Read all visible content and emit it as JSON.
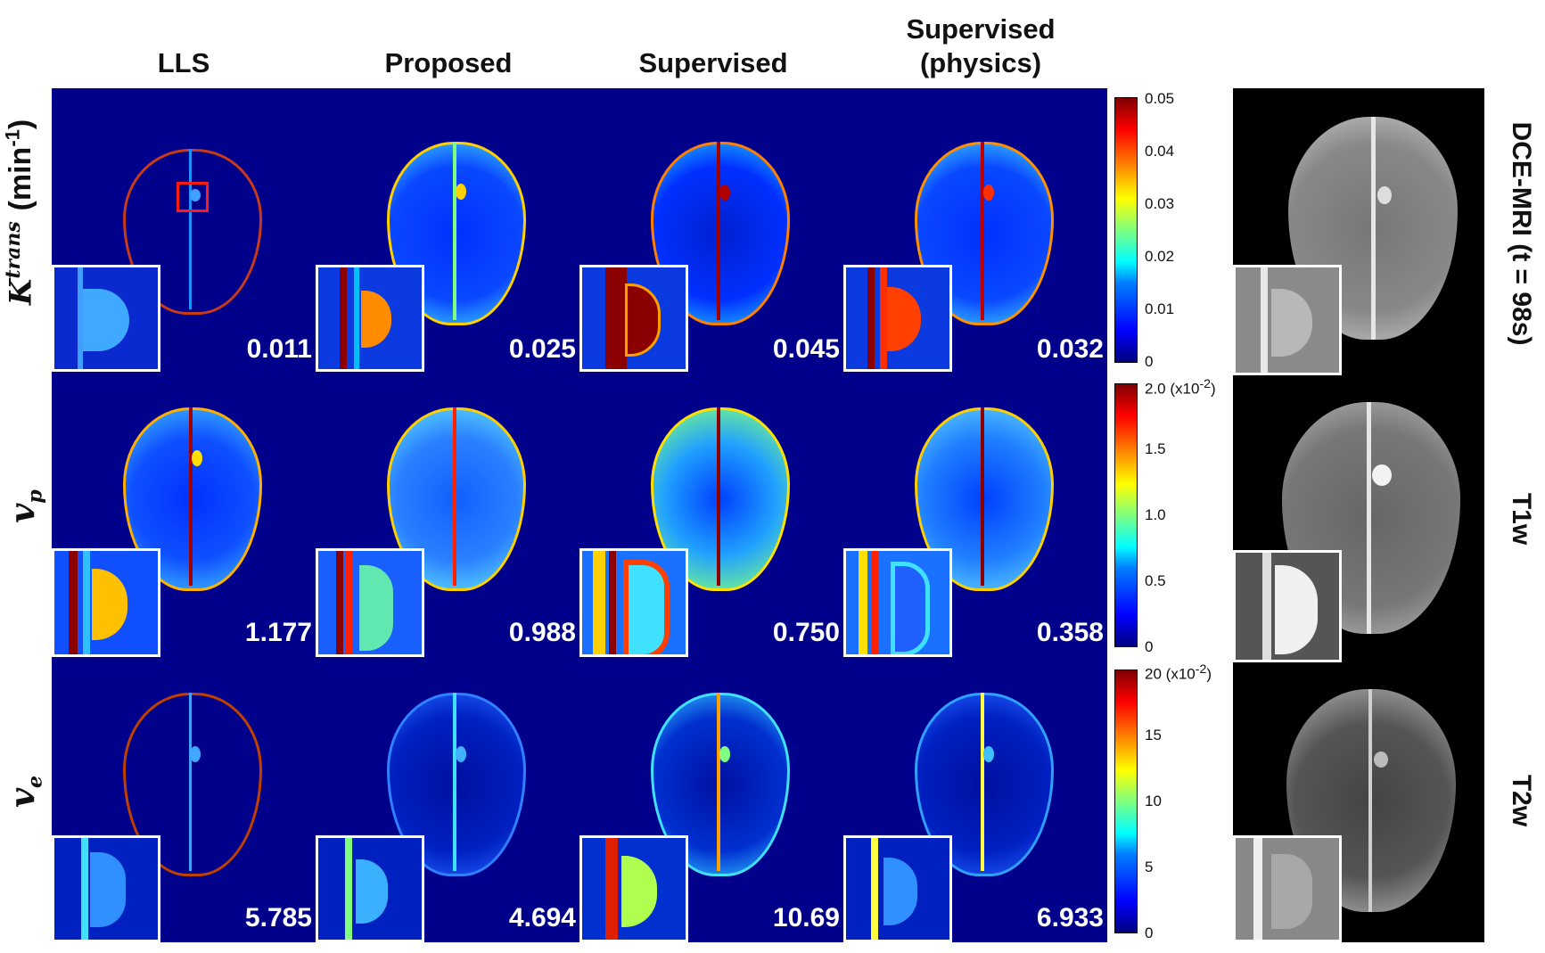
{
  "columns": [
    "LLS",
    "Proposed",
    "Supervised",
    "Supervised\n(physics)"
  ],
  "rows": [
    {
      "symbol": "K",
      "sup": "trans",
      "sub": "",
      "unit": "(min",
      "unit_sup": "-1",
      "unit_end": ")",
      "values": [
        "0.011",
        "0.025",
        "0.045",
        "0.032"
      ]
    },
    {
      "symbol": "v",
      "sup": "",
      "sub": "p",
      "unit": "",
      "unit_sup": "",
      "unit_end": "",
      "values": [
        "1.177",
        "0.988",
        "0.750",
        "0.358"
      ]
    },
    {
      "symbol": "v",
      "sup": "",
      "sub": "e",
      "unit": "",
      "unit_sup": "",
      "unit_end": "",
      "values": [
        "5.785",
        "4.694",
        "10.69",
        "6.933"
      ]
    }
  ],
  "colorbars": [
    {
      "ticks": [
        "0.05",
        "0.04",
        "0.03",
        "0.02",
        "0.01",
        "0"
      ],
      "scale": ""
    },
    {
      "ticks": [
        "2.0",
        "1.5",
        "1.0",
        "0.5",
        "0"
      ],
      "scale": "(x10",
      "scale_sup": "-2",
      "scale_end": ")"
    },
    {
      "ticks": [
        "20",
        "15",
        "10",
        "5",
        "0"
      ],
      "scale": "(x10",
      "scale_sup": "-2",
      "scale_end": ")"
    }
  ],
  "reference_labels": [
    "DCE-MRI (t = 98s)",
    "T1w",
    "T2w"
  ],
  "colors": {
    "map_background": "#00008b",
    "inset_border": "#ffffff",
    "roi": "#ff1a1a"
  }
}
